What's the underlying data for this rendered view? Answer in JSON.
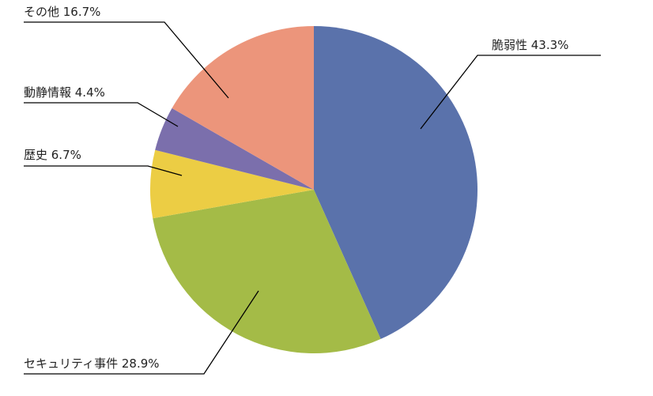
{
  "chart_data": {
    "type": "pie",
    "start_angle_deg": 0,
    "direction": "clockwise",
    "slices": [
      {
        "label": "脆弱性",
        "value": 43.3,
        "display": "脆弱性 43.3%",
        "color": "#5a72ab"
      },
      {
        "label": "セキュリティ事件",
        "value": 28.9,
        "display": "セキュリティ事件 28.9%",
        "color": "#a4bb47"
      },
      {
        "label": "歴史",
        "value": 6.7,
        "display": "歴史 6.7%",
        "color": "#eccd44"
      },
      {
        "label": "動静情報",
        "value": 4.4,
        "display": "動静情報 4.4%",
        "color": "#7b6fac"
      },
      {
        "label": "その他",
        "value": 16.7,
        "display": "その他 16.7%",
        "color": "#ec957b"
      }
    ]
  }
}
